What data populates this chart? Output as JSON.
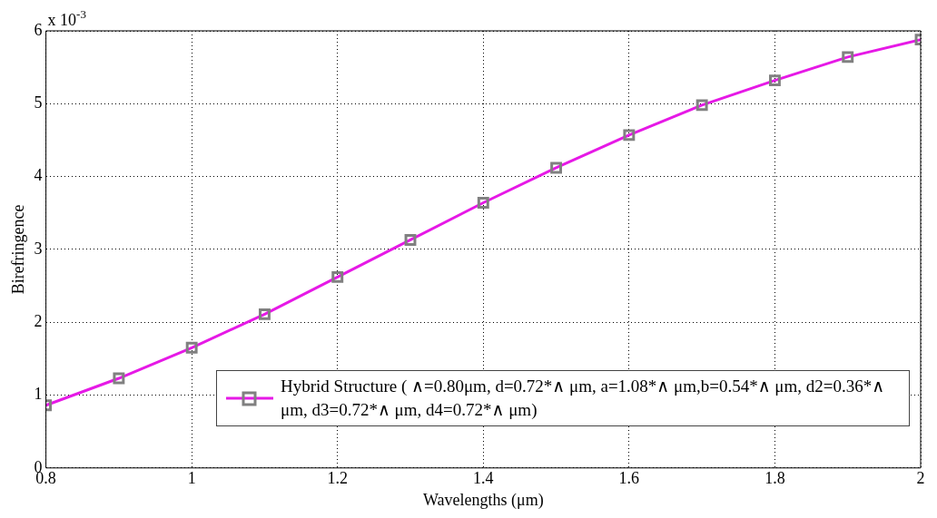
{
  "chart_data": {
    "type": "line",
    "xlabel": "Wavelengths (μm)",
    "ylabel": "Birefringence",
    "annotations": [
      "x 10$^{-3}$"
    ],
    "x": [
      0.8,
      0.9,
      1.0,
      1.1,
      1.2,
      1.3,
      1.4,
      1.5,
      1.6,
      1.7,
      1.8,
      1.9,
      2.0
    ],
    "series": [
      {
        "name": "Hybrid Structure ( ∧=0.80μm, d=0.72*∧ μm, a=1.08*∧ μm,b=0.54*∧ μm, d2=0.36*∧ μm, d3=0.72*∧ μm, d4=0.72*∧ μm)",
        "color": "#e619e6",
        "values": [
          0.86,
          1.23,
          1.65,
          2.11,
          2.62,
          3.13,
          3.64,
          4.12,
          4.57,
          4.98,
          5.32,
          5.64,
          5.88
        ]
      }
    ],
    "xlim": [
      0.8,
      2
    ],
    "xticks": [
      0.8,
      1,
      1.2,
      1.4,
      1.6,
      1.8,
      2
    ],
    "ylim": [
      0,
      6
    ],
    "yticks": [
      0,
      1,
      2,
      3,
      4,
      5,
      6
    ],
    "grid": true,
    "legend": "bottom right",
    "marker": "square",
    "line_style": "solid"
  }
}
